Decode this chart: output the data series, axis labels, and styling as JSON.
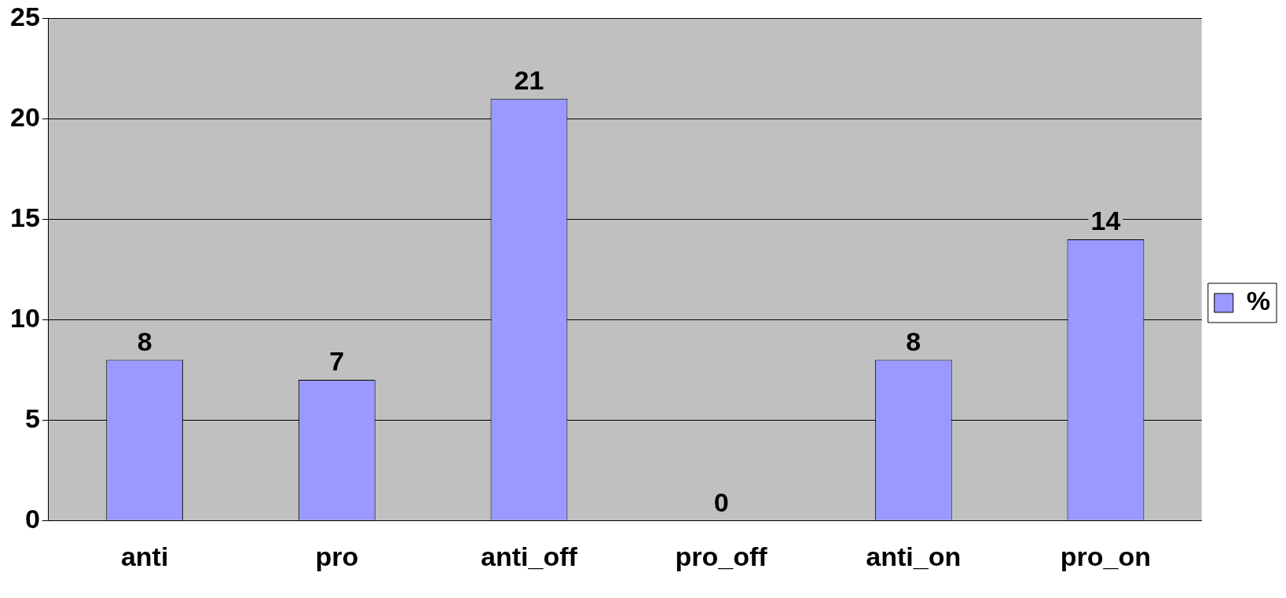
{
  "chart_data": {
    "type": "bar",
    "categories": [
      "anti",
      "pro",
      "anti_off",
      "pro_off",
      "anti_on",
      "pro_on"
    ],
    "series": [
      {
        "name": "%",
        "color": "#9999ff",
        "values": [
          8,
          7,
          21,
          0,
          8,
          14
        ]
      }
    ],
    "ylim": [
      0,
      25
    ],
    "yticks": [
      0,
      5,
      10,
      15,
      20,
      25
    ],
    "grid": "y",
    "legend": "right",
    "data_labels": true
  }
}
